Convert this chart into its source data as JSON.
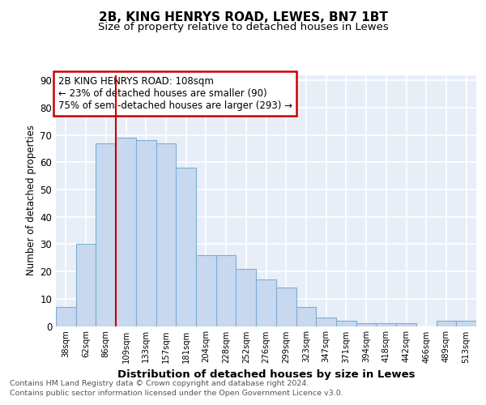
{
  "title1": "2B, KING HENRYS ROAD, LEWES, BN7 1BT",
  "title2": "Size of property relative to detached houses in Lewes",
  "xlabel": "Distribution of detached houses by size in Lewes",
  "ylabel": "Number of detached properties",
  "footnote1": "Contains HM Land Registry data © Crown copyright and database right 2024.",
  "footnote2": "Contains public sector information licensed under the Open Government Licence v3.0.",
  "annotation_line1": "2B KING HENRYS ROAD: 108sqm",
  "annotation_line2": "← 23% of detached houses are smaller (90)",
  "annotation_line3": "75% of semi-detached houses are larger (293) →",
  "bar_labels": [
    "38sqm",
    "62sqm",
    "86sqm",
    "109sqm",
    "133sqm",
    "157sqm",
    "181sqm",
    "204sqm",
    "228sqm",
    "252sqm",
    "276sqm",
    "299sqm",
    "323sqm",
    "347sqm",
    "371sqm",
    "394sqm",
    "418sqm",
    "442sqm",
    "466sqm",
    "489sqm",
    "513sqm"
  ],
  "bar_values": [
    7,
    30,
    67,
    69,
    68,
    67,
    58,
    26,
    26,
    21,
    17,
    14,
    7,
    3,
    2,
    1,
    1,
    1,
    0,
    2,
    2
  ],
  "bar_color": "#c8d8ef",
  "bar_edge_color": "#7bafd4",
  "background_color": "#ffffff",
  "plot_bg_color": "#e8eef8",
  "vline_x_index": 3,
  "vline_color": "#cc0000",
  "annotation_box_color": "#cc0000",
  "ylim": [
    0,
    92
  ],
  "yticks": [
    0,
    10,
    20,
    30,
    40,
    50,
    60,
    70,
    80,
    90
  ],
  "property_sqm": 108
}
